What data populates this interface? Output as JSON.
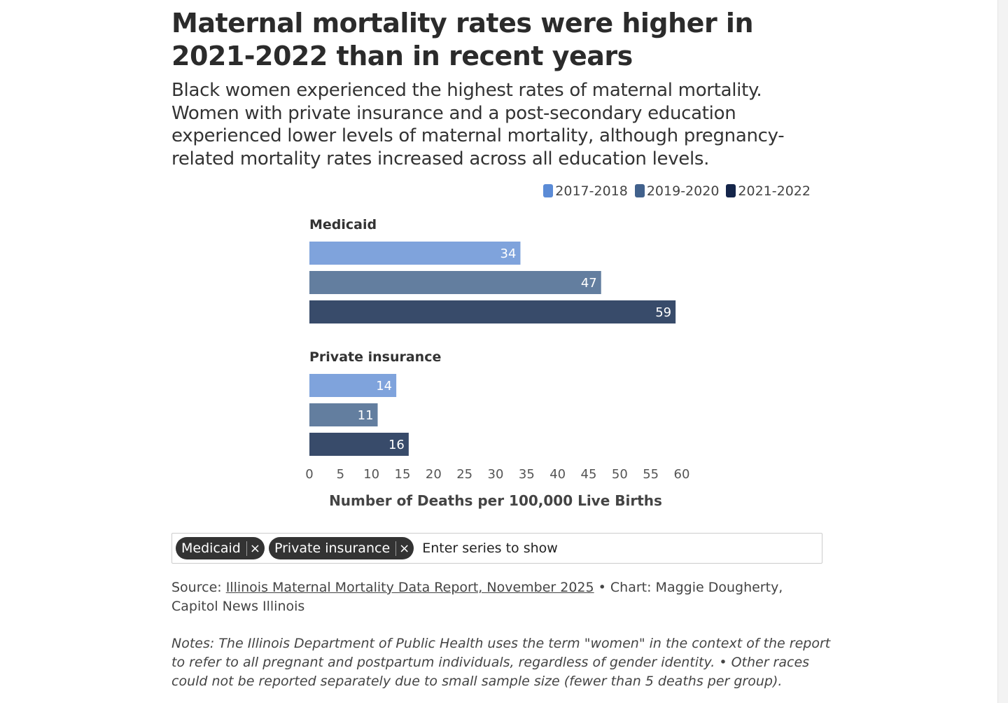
{
  "title": "Maternal mortality rates were higher in 2021-2022 than in recent years",
  "subtitle": "Black women experienced the highest rates of maternal mortality. Women with private insurance and a post-secondary education experienced lower levels of maternal mortality, although pregnancy-related mortality rates increased across all education levels.",
  "chart_data": {
    "type": "bar",
    "orientation": "horizontal",
    "categories": [
      "Medicaid",
      "Private insurance"
    ],
    "series": [
      {
        "name": "2017-2018",
        "values": [
          34,
          14
        ],
        "color": "#7fa3dc",
        "legend_color": "#5b8bd6"
      },
      {
        "name": "2019-2020",
        "values": [
          47,
          11
        ],
        "color": "#637e9f",
        "legend_color": "#41618c"
      },
      {
        "name": "2021-2022",
        "values": [
          59,
          16
        ],
        "color": "#384b6a",
        "legend_color": "#14254a"
      }
    ],
    "xlabel": "Number of Deaths per 100,000 Live Births",
    "xlim": [
      0,
      60
    ],
    "xticks": [
      "0",
      "5",
      "10",
      "15",
      "20",
      "25",
      "30",
      "35",
      "40",
      "45",
      "50",
      "55",
      "60"
    ],
    "legend_position": "top-right",
    "grid": false
  },
  "filter": {
    "tags": [
      "Medicaid",
      "Private insurance"
    ],
    "remove_icon": "close-icon",
    "placeholder": "Enter series to show"
  },
  "source": {
    "prefix": "Source: ",
    "link": "Illinois Maternal Mortality Data Report, November 2025",
    "suffix": " • Chart: Maggie Dougherty, Capitol News Illinois"
  },
  "notes": "Notes: The Illinois Department of Public Health uses the term \"women\" in the context of the report to refer to all pregnant and postpartum individuals, regardless of gender identity. • Other races could not be reported separately due to small sample size (fewer than 5 deaths per group)."
}
